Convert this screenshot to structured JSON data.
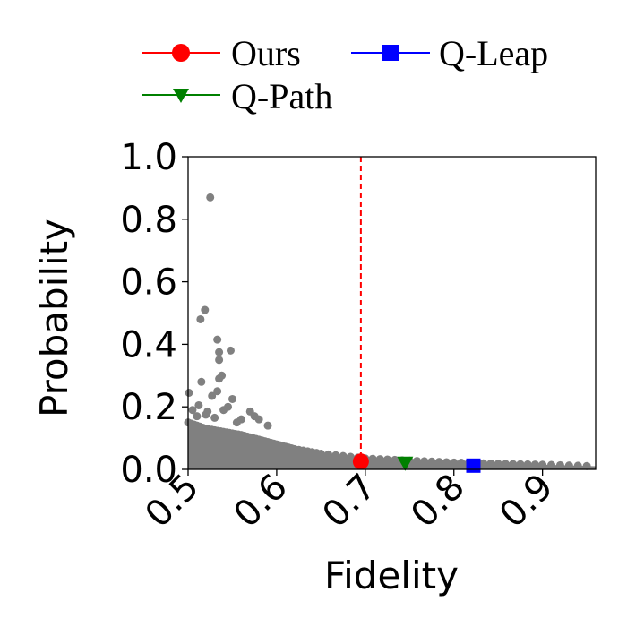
{
  "chart_data": {
    "type": "scatter",
    "title": "",
    "xlabel": "Fidelity",
    "ylabel": "Probability",
    "xlim": [
      0.5,
      0.96
    ],
    "ylim": [
      0.0,
      1.0
    ],
    "xticks": [
      0.5,
      0.6,
      0.7,
      0.8,
      0.9
    ],
    "xtick_labels": [
      "0.5",
      "0.6",
      "0.7",
      "0.8",
      "0.9"
    ],
    "yticks": [
      0.0,
      0.2,
      0.4,
      0.6,
      0.8,
      1.0
    ],
    "ytick_labels": [
      "0.0",
      "0.2",
      "0.4",
      "0.6",
      "0.8",
      "1.0"
    ],
    "grid": false,
    "legend_position": "top",
    "cloud_color": "#808080",
    "cloud_upper_envelope": {
      "x": [
        0.5,
        0.52,
        0.54,
        0.56,
        0.58,
        0.6,
        0.62,
        0.65,
        0.7,
        0.75,
        0.8,
        0.85,
        0.9,
        0.96
      ],
      "y": [
        0.15,
        0.13,
        0.12,
        0.11,
        0.095,
        0.08,
        0.065,
        0.05,
        0.035,
        0.028,
        0.022,
        0.018,
        0.015,
        0.01
      ]
    },
    "scatter_points": [
      {
        "x": 0.525,
        "y": 0.87
      },
      {
        "x": 0.519,
        "y": 0.51
      },
      {
        "x": 0.514,
        "y": 0.48
      },
      {
        "x": 0.533,
        "y": 0.415
      },
      {
        "x": 0.548,
        "y": 0.38
      },
      {
        "x": 0.535,
        "y": 0.375
      },
      {
        "x": 0.535,
        "y": 0.35
      },
      {
        "x": 0.538,
        "y": 0.3
      },
      {
        "x": 0.535,
        "y": 0.29
      },
      {
        "x": 0.515,
        "y": 0.28
      },
      {
        "x": 0.501,
        "y": 0.245
      },
      {
        "x": 0.527,
        "y": 0.235
      },
      {
        "x": 0.533,
        "y": 0.25
      },
      {
        "x": 0.55,
        "y": 0.225
      },
      {
        "x": 0.545,
        "y": 0.2
      },
      {
        "x": 0.512,
        "y": 0.205
      },
      {
        "x": 0.505,
        "y": 0.19
      },
      {
        "x": 0.522,
        "y": 0.185
      },
      {
        "x": 0.54,
        "y": 0.19
      },
      {
        "x": 0.57,
        "y": 0.185
      },
      {
        "x": 0.575,
        "y": 0.17
      },
      {
        "x": 0.58,
        "y": 0.16
      },
      {
        "x": 0.51,
        "y": 0.17
      },
      {
        "x": 0.53,
        "y": 0.165
      },
      {
        "x": 0.56,
        "y": 0.16
      },
      {
        "x": 0.555,
        "y": 0.15
      },
      {
        "x": 0.59,
        "y": 0.14
      },
      {
        "x": 0.52,
        "y": 0.175
      }
    ],
    "vline": {
      "x": 0.695,
      "color": "#ff0000",
      "style": "dashed"
    },
    "series": [
      {
        "name": "Ours",
        "marker": "circle",
        "color": "#ff0000",
        "x": 0.695,
        "y": 0.025
      },
      {
        "name": "Q-Leap",
        "marker": "square",
        "color": "#0000ff",
        "x": 0.822,
        "y": 0.012
      },
      {
        "name": "Q-Path",
        "marker": "triangle-down",
        "color": "#008000",
        "x": 0.745,
        "y": 0.018
      }
    ]
  }
}
